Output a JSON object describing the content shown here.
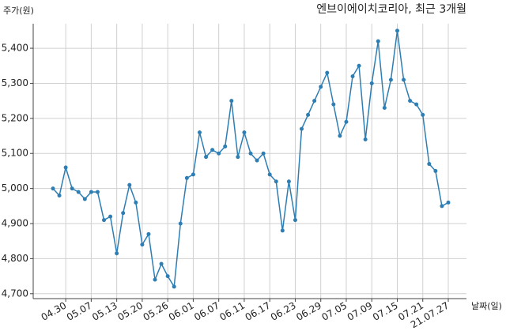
{
  "chart_data": {
    "type": "line",
    "title": "엔브이에이치코리아, 최근 3개월",
    "y_label": "주가(원)",
    "x_label": "날짜(일)",
    "categories": [
      null,
      null,
      "04.30",
      null,
      null,
      null,
      "05.07",
      null,
      null,
      null,
      "05.13",
      null,
      null,
      null,
      "05.20",
      null,
      null,
      null,
      "05.26",
      null,
      null,
      null,
      "06.01",
      null,
      null,
      null,
      "06.07",
      null,
      null,
      null,
      "06.11",
      null,
      null,
      null,
      "06.17",
      null,
      null,
      null,
      "06.23",
      null,
      null,
      null,
      "06.29",
      null,
      null,
      null,
      "07.05",
      null,
      null,
      null,
      "07.09",
      null,
      null,
      null,
      "07.15",
      null,
      null,
      null,
      "07.21",
      null,
      null,
      null,
      "21.07.27"
    ],
    "series": [
      {
        "name": "주가",
        "color": "#2e7eb3",
        "values": [
          5000,
          4980,
          5060,
          5000,
          4990,
          4970,
          4990,
          4990,
          4910,
          4920,
          4815,
          4930,
          5010,
          4960,
          4840,
          4870,
          4740,
          4785,
          4750,
          4720,
          4900,
          5030,
          5040,
          5160,
          5090,
          5110,
          5100,
          5120,
          5250,
          5090,
          5160,
          5100,
          5080,
          5100,
          5040,
          5020,
          4880,
          5020,
          4910,
          5170,
          5210,
          5250,
          5290,
          5330,
          5240,
          5150,
          5190,
          5320,
          5350,
          5140,
          5300,
          5420,
          5230,
          5310,
          5450,
          5310,
          5250,
          5240,
          5210,
          5070,
          5050,
          4950,
          4960
        ]
      }
    ],
    "ylim": [
      4686,
      5470
    ],
    "yticks": [
      {
        "value": 4700,
        "label": "4,700"
      },
      {
        "value": 4800,
        "label": "4,800"
      },
      {
        "value": 4900,
        "label": "4,900"
      },
      {
        "value": 5000,
        "label": "5,000"
      },
      {
        "value": 5100,
        "label": "5,100"
      },
      {
        "value": 5200,
        "label": "5,200"
      },
      {
        "value": 5300,
        "label": "5,300"
      },
      {
        "value": 5400,
        "label": "5,400"
      }
    ],
    "grid": true
  }
}
